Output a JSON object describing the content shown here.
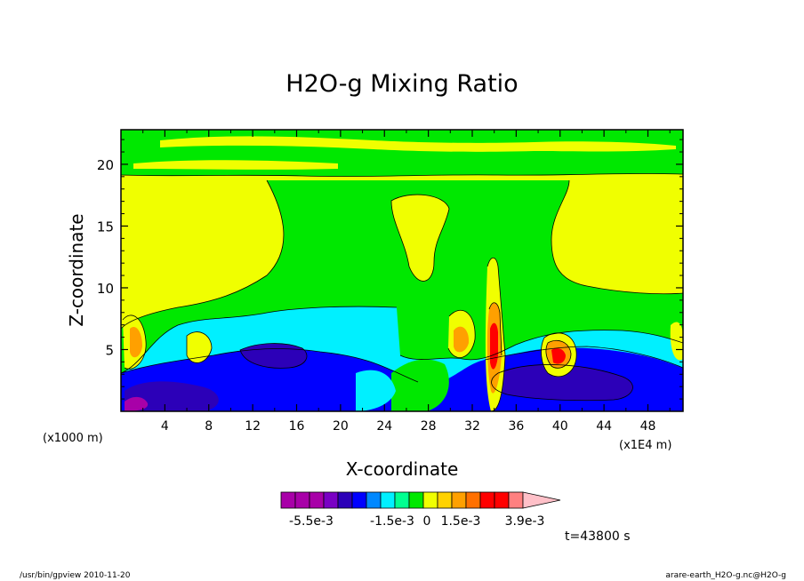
{
  "chart_data": {
    "type": "heatmap",
    "title": "H2O-g Mixing Ratio",
    "xlabel": "X-coordinate",
    "ylabel": "Z-coordinate",
    "x_unit_left": "(x1000 m)",
    "x_unit_right": "(x1E4 m)",
    "xlim": [
      0,
      51.2
    ],
    "ylim": [
      0,
      22.8
    ],
    "x_ticks": [
      "4",
      "8",
      "12",
      "16",
      "20",
      "24",
      "28",
      "32",
      "36",
      "40",
      "44",
      "48"
    ],
    "y_ticks": [
      "5",
      "10",
      "15",
      "20"
    ],
    "time_label": "t=43800 s",
    "colorbar": {
      "colors": [
        "#a800a8",
        "#a800a8",
        "#a800a8",
        "#7a00c4",
        "#2c00b8",
        "#0000ff",
        "#0088ff",
        "#00f0ff",
        "#00ff90",
        "#00e800",
        "#f0ff00",
        "#ffd200",
        "#ffa000",
        "#ff7000",
        "#ff0000",
        "#ff0000",
        "#ff8080",
        "#ffc0c8"
      ],
      "labels": [
        "-5.5e-3",
        "-1.5e-3",
        "0",
        "1.5e-3",
        "3.9e-3"
      ]
    },
    "colors": {
      "bottom_blue": "#0000ff",
      "dark_blue": "#2c00b8",
      "cyan": "#00f0ff",
      "green": "#00e800",
      "yellow": "#f0ff00",
      "orange": "#ffa000",
      "red": "#ff0000",
      "purple": "#a800a8"
    }
  },
  "footer": {
    "left": "/usr/bin/gpview  2010-11-20",
    "right": "arare-earth_H2O-g.nc@H2O-g"
  }
}
